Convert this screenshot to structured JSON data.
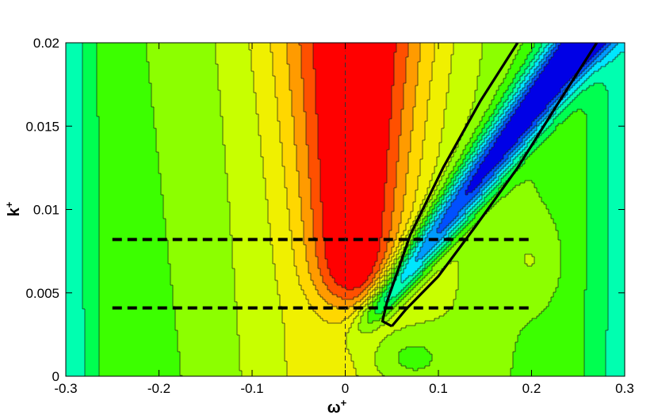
{
  "chart_data": {
    "type": "contour",
    "xlabel": "ω",
    "xlabel_sup": "+",
    "ylabel": "k",
    "ylabel_sup": "+",
    "xlim": [
      -0.3,
      0.3
    ],
    "ylim": [
      0,
      0.02
    ],
    "x_ticks": [
      -0.3,
      -0.2,
      -0.1,
      0,
      0.1,
      0.2,
      0.3
    ],
    "x_tick_labels": [
      "-0.3",
      "-0.2",
      "-0.1",
      "0",
      "0.1",
      "0.2",
      "0.3"
    ],
    "y_ticks": [
      0,
      0.005,
      0.01,
      0.015,
      0.02
    ],
    "y_tick_labels": [
      "0",
      "0.005",
      "0.01",
      "0.015",
      "0.02"
    ],
    "colormap": [
      "#0000e6",
      "#0050ff",
      "#009bff",
      "#00e6ff",
      "#00ffb0",
      "#00ff50",
      "#3cff00",
      "#8cff00",
      "#c8ff00",
      "#f0f000",
      "#ffd700",
      "#ff9b00",
      "#ff5000",
      "#ff0000"
    ],
    "field": {
      "neutral_level": 6,
      "red_peak_level": 13,
      "blue_peak_level": 0,
      "positive_ridge_center_omega_at_k_max": 0.0,
      "negative_ridge_omega_at_k": [
        [
          0.0045,
          0.04
        ],
        [
          0.02,
          0.25
        ]
      ]
    },
    "reference_lines": [
      {
        "style": "dashed",
        "k": 0.0082,
        "omega_range": [
          -0.25,
          0.2
        ]
      },
      {
        "style": "dashed",
        "k": 0.0041,
        "omega_range": [
          -0.25,
          0.2
        ]
      },
      {
        "style": "thin-dashed",
        "omega": 0,
        "k_range": [
          0,
          0.0195
        ]
      }
    ],
    "bold_contour": {
      "style": "solid-thick",
      "points": [
        [
          0.05,
          0.003
        ],
        [
          0.04,
          0.0033
        ],
        [
          0.045,
          0.0045
        ],
        [
          0.07,
          0.0085
        ],
        [
          0.105,
          0.0125
        ],
        [
          0.145,
          0.0165
        ],
        [
          0.185,
          0.02
        ]
      ],
      "points_right": [
        [
          0.05,
          0.003
        ],
        [
          0.065,
          0.004
        ],
        [
          0.1,
          0.006
        ],
        [
          0.14,
          0.009
        ],
        [
          0.185,
          0.0125
        ],
        [
          0.23,
          0.0165
        ],
        [
          0.27,
          0.02
        ]
      ]
    }
  }
}
